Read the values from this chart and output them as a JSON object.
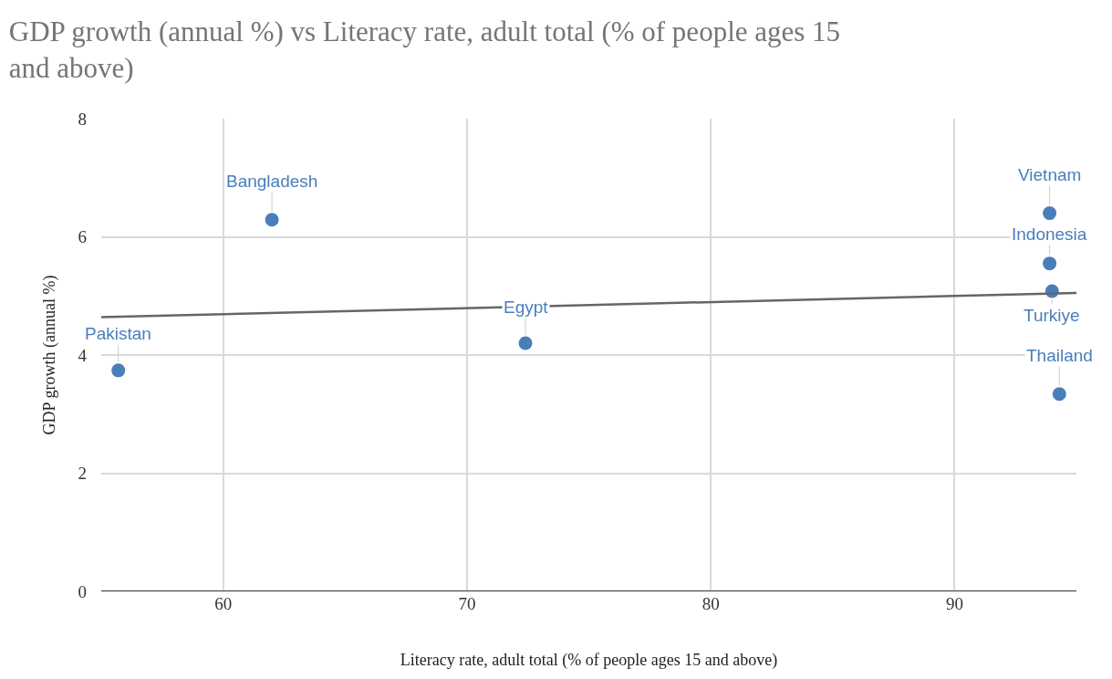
{
  "chart_data": {
    "type": "scatter",
    "title": "GDP growth (annual %) vs Literacy rate, adult total (% of people ages 15 and above)",
    "xlabel": "Literacy rate, adult total (% of people ages 15 and above)",
    "ylabel": "GDP growth (annual %)",
    "xlim": [
      55,
      95
    ],
    "xticks": [
      60,
      70,
      80,
      90
    ],
    "ylim": [
      0,
      8
    ],
    "yticks": [
      0,
      2,
      4,
      6,
      8
    ],
    "grid": true,
    "marker": "circle",
    "series": [
      {
        "color": "#4a7ebb",
        "x": [
          55.7,
          62.0,
          72.4,
          93.9,
          93.9,
          94.0,
          94.3
        ],
        "values": [
          3.74,
          6.29,
          4.2,
          6.4,
          5.55,
          5.08,
          3.34
        ]
      },
      {
        "type": "line",
        "color": "#666666",
        "x": [
          55,
          95
        ],
        "values": [
          4.64,
          5.05
        ],
        "marker": "none"
      }
    ],
    "annotations": [
      {
        "text": "Pakistan",
        "x": 55.7,
        "y": 3.74
      },
      {
        "text": "Bangladesh",
        "x": 62.0,
        "y": 6.29
      },
      {
        "text": "Egypt",
        "x": 72.4,
        "y": 4.2
      },
      {
        "text": "Vietnam",
        "x": 93.9,
        "y": 6.4
      },
      {
        "text": "Indonesia",
        "x": 93.9,
        "y": 5.55
      },
      {
        "text": "Turkiye",
        "x": 94.0,
        "y": 5.08
      },
      {
        "text": "Thailand",
        "x": 94.3,
        "y": 3.34
      }
    ]
  }
}
